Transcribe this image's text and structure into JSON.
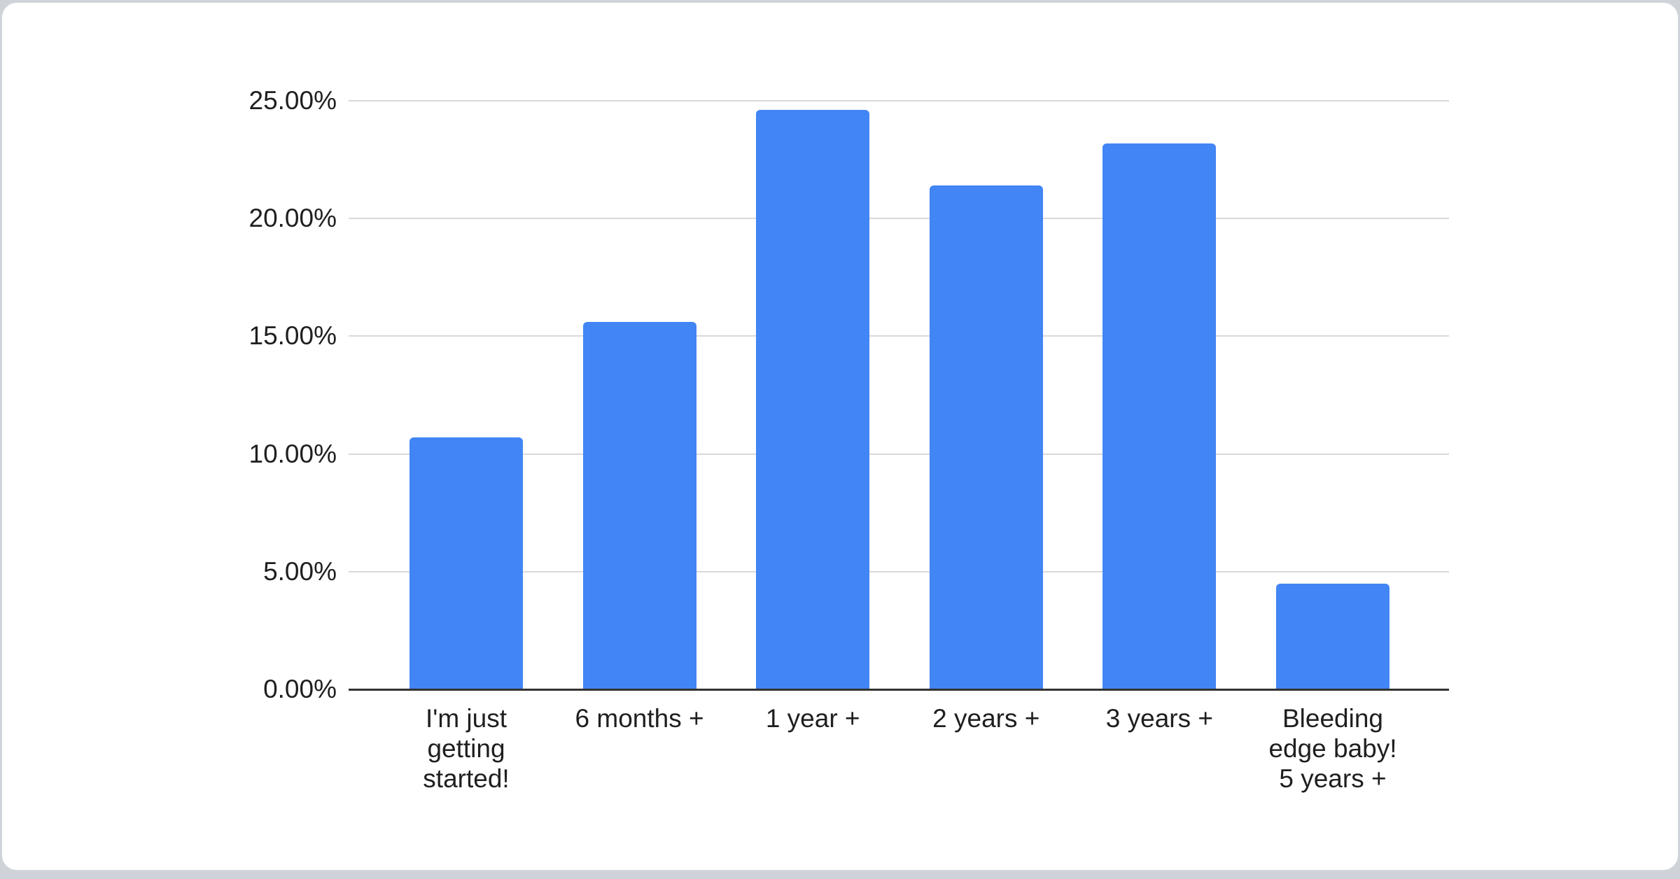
{
  "page": {
    "background_color": "#cfd3d9",
    "card_color": "#ffffff"
  },
  "chart_data": {
    "type": "bar",
    "title": "",
    "xlabel": "",
    "ylabel": "",
    "categories": [
      "I'm just getting started!",
      "6 months +",
      "1 year +",
      "2 years +",
      "3 years +",
      "Bleeding edge baby! 5 years +"
    ],
    "categories_display": [
      "I'm just\ngetting\nstarted!",
      "6 months +",
      "1 year +",
      "2 years +",
      "3 years +",
      "Bleeding\nedge baby!\n5 years +"
    ],
    "values": [
      10.7,
      15.6,
      24.6,
      21.4,
      23.2,
      4.5
    ],
    "value_unit": "%",
    "ylim": [
      0,
      25
    ],
    "yticks": [
      0,
      5,
      10,
      15,
      20,
      25
    ],
    "ytick_labels": [
      "0.00%",
      "5.00%",
      "10.00%",
      "15.00%",
      "20.00%",
      "25.00%"
    ],
    "grid": true,
    "legend_position": "none",
    "bar_color": "#4285f4",
    "gridline_color": "#d9d9d9",
    "baseline_color": "#333333",
    "text_color": "#1f1f1f"
  }
}
